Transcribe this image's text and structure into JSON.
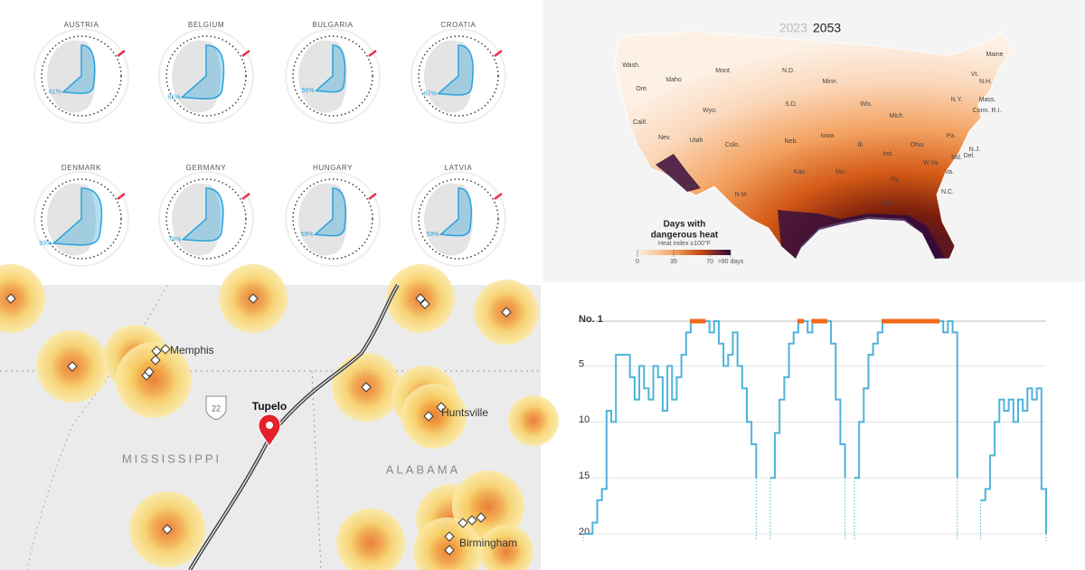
{
  "chart_data": [
    {
      "type": "radial",
      "categories": [
        "AUSTRIA",
        "BELGIUM",
        "BULGARIA",
        "CROATIA",
        "DENMARK",
        "GERMANY",
        "HUNGARY",
        "LATVIA"
      ],
      "values": [
        61,
        81,
        56,
        67,
        93,
        78,
        59,
        59
      ],
      "value_labels": [
        "61%",
        "81%",
        "56%",
        "67%",
        "93%",
        "78%",
        "59%",
        "59%"
      ],
      "color": "#29a3dd"
    },
    {
      "type": "line",
      "values": [
        20,
        20,
        19,
        17,
        16,
        9,
        10,
        4,
        4,
        4,
        6,
        8,
        5,
        7,
        8,
        5,
        6,
        9,
        5,
        8,
        6,
        4,
        2,
        1,
        1,
        1,
        1,
        2,
        1,
        3,
        5,
        4,
        2,
        5,
        7,
        10,
        12,
        15,
        null,
        null,
        15,
        11,
        8,
        6,
        3,
        2,
        1,
        1,
        2,
        1,
        1,
        1,
        1,
        3,
        8,
        12,
        15,
        null,
        15,
        10,
        7,
        4,
        3,
        2,
        1,
        1,
        1,
        1,
        1,
        1,
        1,
        1,
        1,
        1,
        1,
        1,
        1,
        2,
        1,
        2,
        15,
        null,
        null,
        null,
        null,
        17,
        16,
        13,
        10,
        8,
        9,
        8,
        10,
        8,
        9,
        7,
        8,
        7,
        16,
        20
      ],
      "ylim": [
        1,
        20
      ],
      "y_inverted": true,
      "yticks": [
        {
          "value": 1,
          "label": "No. 1"
        },
        5,
        10,
        15,
        20
      ],
      "grid": true,
      "color": "#4fb3d9",
      "highlight_color": "#f26a1b"
    }
  ],
  "heat_map": {
    "years": [
      "2023",
      "2053"
    ],
    "states": [
      "Wash.",
      "Ore.",
      "Idaho",
      "Mont.",
      "Wyo.",
      "N.D.",
      "S.D.",
      "Minn.",
      "Wis.",
      "Mich.",
      "Maine",
      "Vt.",
      "N.H.",
      "N.Y.",
      "Mass.",
      "Conn.",
      "R.I.",
      "Pa.",
      "N.J.",
      "Del.",
      "Md.",
      "Nev.",
      "Utah",
      "Colo.",
      "Neb.",
      "Iowa",
      "Ill.",
      "Ind.",
      "Ohio",
      "W.Va.",
      "Va.",
      "Calif.",
      "Kan.",
      "Mo.",
      "Ky.",
      "N.C.",
      "Ariz.",
      "N.M.",
      "Tenn."
    ],
    "legend_title": [
      "Days with",
      "dangerous heat"
    ],
    "legend_subtitle": "Heat index ≥100°F",
    "legend_lim": [
      0,
      90
    ],
    "legend_ticks": [
      0,
      35,
      70,
      {
        "value": 90,
        "label": ">90 days"
      }
    ]
  },
  "proximity_map": {
    "cities": [
      "Memphis",
      "Huntsville",
      "Birmingham"
    ],
    "states": [
      "MISSISSIPPI",
      "ALABAMA"
    ],
    "highlight": "Tupelo",
    "route": "22"
  }
}
